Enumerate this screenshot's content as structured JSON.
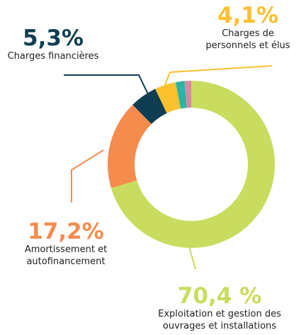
{
  "chart_data": {
    "type": "donut",
    "categories": [
      "Exploitation et gestion des ouvrages et installations",
      "Amortissement et autofinancement",
      "Charges financières",
      "Charges de personnels et élus",
      null,
      null
    ],
    "values": [
      70.4,
      17.2,
      5.3,
      4.1,
      1.7,
      1.3
    ],
    "value_labels": [
      "70,4 %",
      "17,2%",
      "5,3%",
      "4,1%",
      null,
      null
    ],
    "colors": [
      "#c9dc5f",
      "#f58b4c",
      "#0f3d52",
      "#fbc02d",
      "#2bb3a3",
      "#d48aa6"
    ]
  }
}
